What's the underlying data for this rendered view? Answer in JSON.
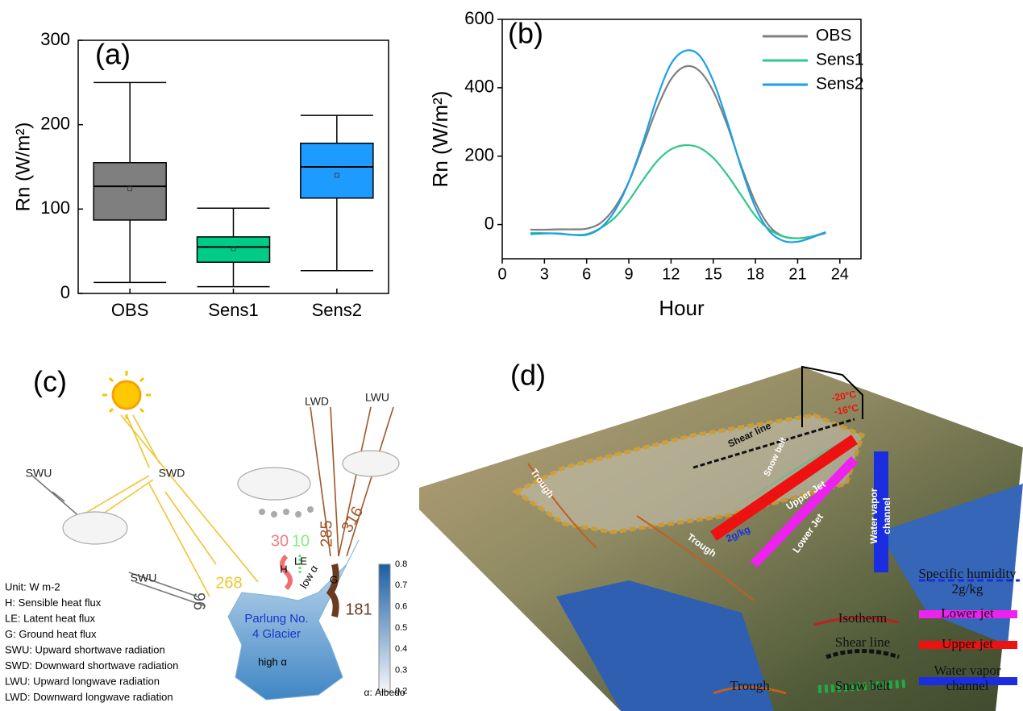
{
  "chart_data": [
    {
      "type": "box",
      "panel_label": "(a)",
      "y_label": "Rn (W/m²)",
      "categories": [
        "OBS",
        "Sens1",
        "Sens2"
      ],
      "boxes": [
        {
          "whislo": 13,
          "q1": 87,
          "median": 127,
          "q3": 155,
          "whishi": 250,
          "mean": 124,
          "color": "#7f7f7f"
        },
        {
          "whislo": 8,
          "q1": 37,
          "median": 55,
          "q3": 67,
          "whishi": 101,
          "mean": 53,
          "color": "#00cc88"
        },
        {
          "whislo": 27,
          "q1": 113,
          "median": 150,
          "q3": 178,
          "whishi": 211,
          "mean": 140,
          "color": "#1e9bff"
        }
      ],
      "ylim": [
        0,
        300
      ],
      "yticks": [
        0,
        100,
        200,
        300
      ],
      "grid": false
    },
    {
      "type": "line",
      "panel_label": "(b)",
      "x_label": "Hour",
      "y_label": "Rn (W/m²)",
      "x": [
        2,
        3,
        4,
        5,
        6,
        7,
        8,
        9,
        10,
        11,
        12,
        13,
        14,
        15,
        16,
        17,
        18,
        19,
        20,
        21,
        22,
        23
      ],
      "series": [
        {
          "name": "OBS",
          "color": "#808080",
          "values": [
            -15,
            -15,
            -14,
            -14,
            -12,
            5,
            50,
            125,
            230,
            340,
            425,
            462,
            450,
            390,
            290,
            170,
            65,
            -5,
            -35,
            -40,
            -35,
            -25
          ]
        },
        {
          "name": "Sens1",
          "color": "#2ec88a",
          "values": [
            -25,
            -25,
            -27,
            -30,
            -28,
            -10,
            20,
            70,
            130,
            185,
            220,
            232,
            225,
            195,
            145,
            85,
            25,
            -15,
            -35,
            -40,
            -35,
            -22
          ]
        },
        {
          "name": "Sens2",
          "color": "#1aa0e6",
          "values": [
            -28,
            -26,
            -26,
            -30,
            -30,
            -10,
            40,
            125,
            240,
            370,
            470,
            508,
            495,
            420,
            300,
            165,
            50,
            -20,
            -48,
            -50,
            -38,
            -22
          ]
        }
      ],
      "xlim": [
        0,
        25.5
      ],
      "xticks": [
        0,
        3,
        6,
        9,
        12,
        15,
        18,
        21,
        24
      ],
      "ylim": [
        -100,
        600
      ],
      "yticks": [
        0,
        200,
        400,
        600
      ],
      "legend": "upper right",
      "grid": false
    }
  ],
  "panel_c": {
    "panel_label": "(c)",
    "texts": [
      "SWU",
      "SWD",
      "LWD",
      "LWU",
      "SWU",
      "H",
      "LE",
      "G",
      "low α",
      "high α",
      "Parlung No.",
      "4 Glacier"
    ],
    "numbers": [
      30,
      10,
      285,
      316,
      268,
      96,
      181
    ],
    "legend": [
      "Unit: W m-2",
      "H: Sensible heat flux",
      "LE: Latent heat flux",
      "G: Ground heat flux",
      "SWU: Upward shortwave radiation",
      "SWD: Downward shortwave radiation",
      "LWU: Upward longwave radiation",
      "LWD: Downward longwave radiation"
    ],
    "albedo_ticks": [
      "0.8",
      "0.7",
      "0.6",
      "0.5",
      "0.4",
      "0.3",
      "0.2"
    ],
    "albedo_label": "α: Albedo"
  },
  "panel_d": {
    "panel_label": "(d)",
    "map_texts": [
      "Trough",
      "Trough",
      "Shear line",
      "Snow belt",
      "Upper Jet",
      "Lower Jet",
      "Water vapor",
      "channel",
      "2g/kg",
      "-20°C",
      "-16°C"
    ],
    "legend": [
      "Specific humidity",
      "2g/kg",
      "Isotherm",
      "Lower jet",
      "Shear line",
      "Upper jet",
      "Trough",
      "Snow belt",
      "Water vapor",
      "channel"
    ]
  }
}
